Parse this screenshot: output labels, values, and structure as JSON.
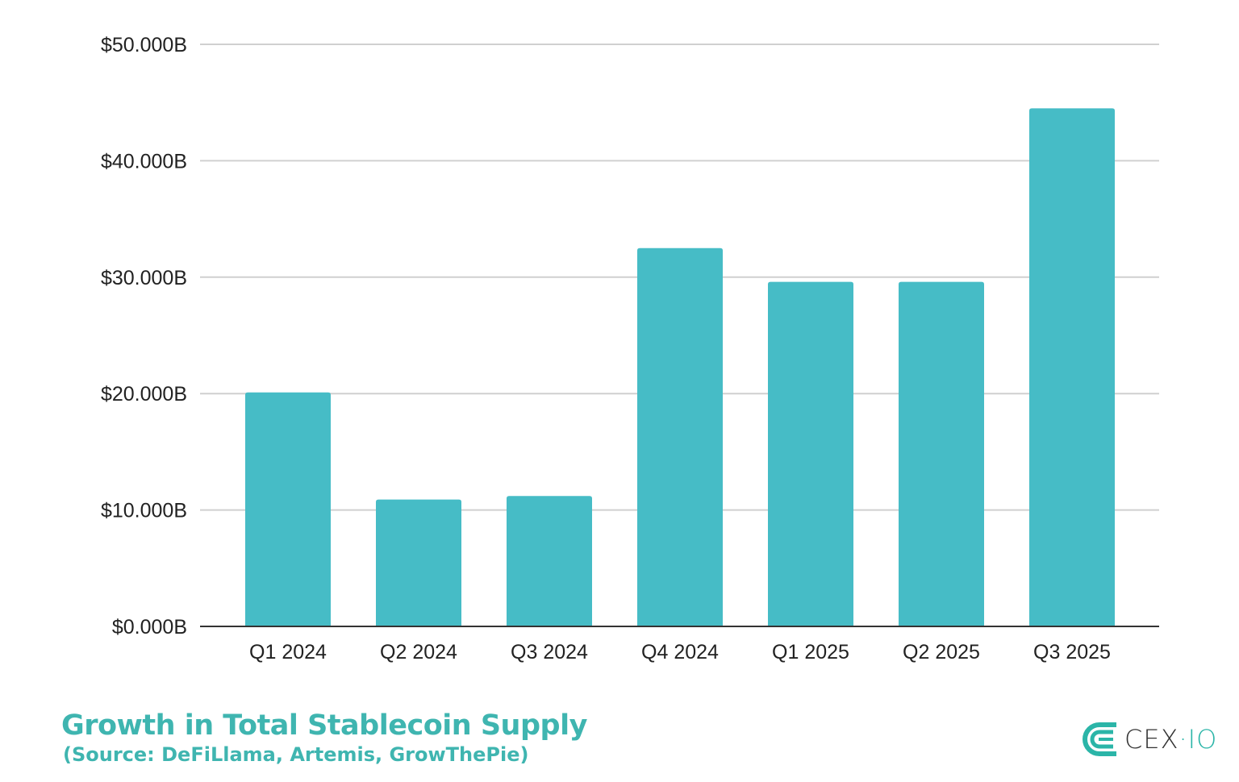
{
  "chart_data": {
    "type": "bar",
    "categories": [
      "Q1 2024",
      "Q2 2024",
      "Q3 2024",
      "Q4 2024",
      "Q1 2025",
      "Q2 2025",
      "Q3 2025"
    ],
    "values": [
      20.1,
      10.9,
      11.2,
      32.5,
      29.6,
      29.6,
      44.5
    ],
    "unit": "billion USD",
    "ylim": [
      0,
      50
    ],
    "yticks": [
      0,
      10,
      20,
      30,
      40,
      50
    ],
    "ytick_labels": [
      "$0.000B",
      "$10.000B",
      "$20.000B",
      "$30.000B",
      "$40.000B",
      "$50.000B"
    ],
    "grid": true,
    "bar_color": "#46bcc6",
    "title": "Growth in Total Stablecoin Supply",
    "subtitle": "(Source: DeFiLlama, Artemis, GrowThePie)",
    "xlabel": "",
    "ylabel": ""
  },
  "branding": {
    "logo": "CEX·IO",
    "logo_main": "CEX",
    "logo_dot": "·",
    "logo_suffix": "IO",
    "color": "#2bb5a8"
  }
}
